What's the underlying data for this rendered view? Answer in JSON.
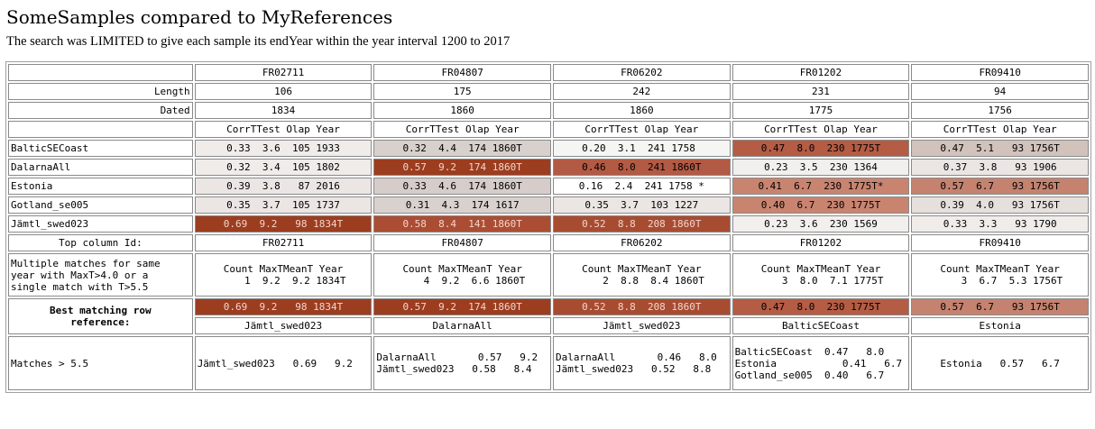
{
  "title": "SomeSamples compared to MyReferences",
  "subtitle": "The search was LIMITED to give each sample its endYear within the year interval 1200 to 2017",
  "header": {
    "samples": [
      "FR02711",
      "FR04807",
      "FR06202",
      "FR01202",
      "FR09410"
    ],
    "length_label": "Length",
    "lengths": [
      "106",
      "175",
      "242",
      "231",
      "94"
    ],
    "dated_label": "Dated",
    "dated": [
      "1834",
      "1860",
      "1860",
      "1775",
      "1756"
    ],
    "col_header": "CorrTTest Olap Year"
  },
  "references": [
    {
      "name": "BalticSECoast",
      "cells": [
        {
          "text": "0.33  3.6  105 1933",
          "bg": "#efecea",
          "dark": false
        },
        {
          "text": "0.32  4.4  174 1860T",
          "bg": "#d8d0cc",
          "dark": false
        },
        {
          "text": "0.20  3.1  241 1758 ",
          "bg": "#f5f5f3",
          "dark": false
        },
        {
          "text": "0.47  8.0  230 1775T",
          "bg": "#b55c44",
          "dark": false
        },
        {
          "text": "0.47  5.1   93 1756T",
          "bg": "#d2c2bc",
          "dark": false
        }
      ]
    },
    {
      "name": "DalarnaAll",
      "cells": [
        {
          "text": "0.32  3.4  105 1802",
          "bg": "#efecea",
          "dark": false
        },
        {
          "text": "0.57  9.2  174 1860T",
          "bg": "#9c3d20",
          "dark": true
        },
        {
          "text": "0.46  8.0  241 1860T",
          "bg": "#b35a44",
          "dark": false
        },
        {
          "text": "0.23  3.5  230 1364",
          "bg": "#f1f0ee",
          "dark": false
        },
        {
          "text": "0.37  3.8   93 1906",
          "bg": "#ebe6e4",
          "dark": false
        }
      ]
    },
    {
      "name": "Estonia",
      "cells": [
        {
          "text": "0.39  3.8   87 2016",
          "bg": "#ebe6e4",
          "dark": false
        },
        {
          "text": "0.33  4.6  174 1860T",
          "bg": "#d6cdca",
          "dark": false
        },
        {
          "text": "0.16  2.4  241 1758 *",
          "bg": "#ffffff",
          "dark": false
        },
        {
          "text": "0.41  6.7  230 1775T*",
          "bg": "#c98470",
          "dark": false
        },
        {
          "text": "0.57  6.7   93 1756T",
          "bg": "#c4826f",
          "dark": false
        }
      ]
    },
    {
      "name": "Gotland_se005",
      "cells": [
        {
          "text": "0.35  3.7  105 1737",
          "bg": "#ebe6e4",
          "dark": false
        },
        {
          "text": "0.31  4.3  174 1617",
          "bg": "#d9d1ce",
          "dark": false
        },
        {
          "text": "0.35  3.7  103 1227",
          "bg": "#ebe6e4",
          "dark": false
        },
        {
          "text": "0.40  6.7  230 1775T",
          "bg": "#c98470",
          "dark": false
        },
        {
          "text": "0.39  4.0   93 1756T",
          "bg": "#e6e0dd",
          "dark": false
        }
      ]
    },
    {
      "name": "Jämtl_swed023",
      "cells": [
        {
          "text": "0.69  9.2   98 1834T",
          "bg": "#9c3d20",
          "dark": true
        },
        {
          "text": "0.58  8.4  141 1860T",
          "bg": "#ab4d33",
          "dark": true
        },
        {
          "text": "0.52  8.8  208 1860T",
          "bg": "#a84c31",
          "dark": true
        },
        {
          "text": "0.23  3.6  230 1569",
          "bg": "#f1f0ee",
          "dark": false
        },
        {
          "text": "0.33  3.3   93 1790",
          "bg": "#efecea",
          "dark": false
        }
      ]
    }
  ],
  "top_column_id_label": "Top column Id:",
  "top_column_ids": [
    "FR02711",
    "FR04807",
    "FR06202",
    "FR01202",
    "FR09410"
  ],
  "multi_label": "Multiple matches for same\nyear with MaxT>4.0 or a\nsingle match with T>5.5",
  "multi": [
    "Count MaxTMeanT Year\n    1  9.2  9.2 1834T",
    "Count MaxTMeanT Year\n    4  9.2  6.6 1860T",
    "Count MaxTMeanT Year\n    2  8.8  8.4 1860T",
    "Count MaxTMeanT Year\n    3  8.0  7.1 1775T",
    "Count MaxTMeanT Year\n    3  6.7  5.3 1756T"
  ],
  "best_label": "Best matching row\nreference:",
  "best": [
    {
      "text": "0.69  9.2   98 1834T",
      "bg": "#9c3d20",
      "dark": true
    },
    {
      "text": "0.57  9.2  174 1860T",
      "bg": "#9c3d20",
      "dark": true
    },
    {
      "text": "0.52  8.8  208 1860T",
      "bg": "#a84c31",
      "dark": true
    },
    {
      "text": "0.47  8.0  230 1775T",
      "bg": "#b55c44",
      "dark": false
    },
    {
      "text": "0.57  6.7   93 1756T",
      "bg": "#c4826f",
      "dark": false
    }
  ],
  "best_refs": [
    "Jämtl_swed023",
    "DalarnaAll",
    "Jämtl_swed023",
    "BalticSECoast",
    "Estonia"
  ],
  "matches_label": "Matches > 5.5",
  "matches": [
    "Jämtl_swed023   0.69   9.2",
    "DalarnaAll       0.57   9.2\nJämtl_swed023   0.58   8.4",
    "DalarnaAll       0.46   8.0\nJämtl_swed023   0.52   8.8",
    "BalticSECoast  0.47   8.0\nEstonia           0.41   6.7\nGotland_se005  0.40   6.7",
    "Estonia   0.57   6.7"
  ]
}
